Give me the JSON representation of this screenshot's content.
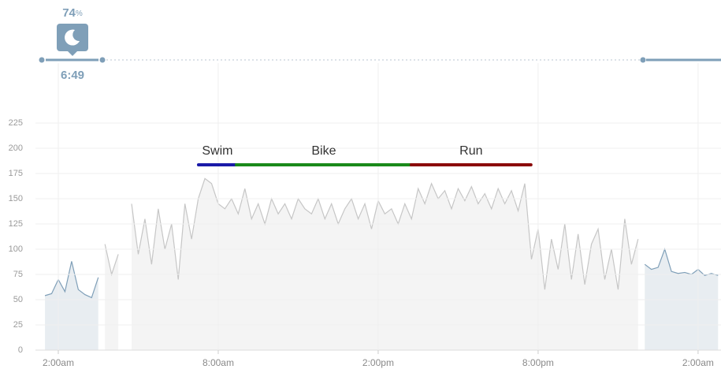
{
  "chart_data": {
    "type": "line",
    "sleep": {
      "score": "74",
      "score_unit": "%",
      "duration": "6:49"
    },
    "xlim": [
      1.38,
      26.86
    ],
    "xticks": [
      {
        "value": 2,
        "label": "2:00am"
      },
      {
        "value": 8,
        "label": "8:00am"
      },
      {
        "value": 14,
        "label": "2:00pm"
      },
      {
        "value": 20,
        "label": "8:00pm"
      },
      {
        "value": 26,
        "label": "2:00am"
      }
    ],
    "ylim": [
      0,
      225
    ],
    "yticks": [
      0,
      25,
      50,
      75,
      100,
      125,
      150,
      175,
      200,
      225
    ],
    "grid": true,
    "activities": [
      {
        "name": "Swim",
        "color": "#1a1aa8",
        "start": 7.26,
        "end": 8.68
      },
      {
        "name": "Bike",
        "color": "#1a8a1a",
        "start": 8.68,
        "end": 15.24
      },
      {
        "name": "Run",
        "color": "#8b0a0a",
        "start": 15.24,
        "end": 19.73
      }
    ],
    "series": [
      {
        "color": "#7f9fb8",
        "fill": "#e8edf1",
        "x": [
          1.5,
          1.75,
          2.0,
          2.25,
          2.5,
          2.75,
          3.0,
          3.25,
          3.5
        ],
        "values": [
          54,
          56,
          70,
          58,
          88,
          60,
          55,
          52,
          72
        ]
      },
      {
        "color": "#c6c6c6",
        "fill": "#f4f4f4",
        "x": [
          3.75,
          4.0,
          4.25,
          4.5,
          4.75,
          5.0,
          5.25,
          5.5,
          5.75,
          6.0,
          6.25,
          6.5,
          6.75,
          7.0,
          7.25,
          7.5,
          7.75,
          8.0,
          8.25,
          8.5,
          8.75,
          9.0,
          9.25,
          9.5,
          9.75,
          10.0,
          10.25,
          10.5,
          10.75,
          11.0,
          11.25,
          11.5,
          11.75,
          12.0,
          12.25,
          12.5,
          12.75,
          13.0,
          13.25,
          13.5,
          13.75,
          14.0,
          14.25,
          14.5,
          14.75,
          15.0,
          15.25,
          15.5,
          15.75,
          16.0,
          16.25,
          16.5,
          16.75,
          17.0,
          17.25,
          17.5,
          17.75,
          18.0,
          18.25,
          18.5,
          18.75,
          19.0,
          19.25,
          19.5,
          19.75,
          20.0,
          20.25,
          20.5,
          20.75,
          21.0,
          21.25,
          21.5,
          21.75,
          22.0,
          22.25,
          22.5,
          22.75,
          23.0,
          23.25,
          23.5,
          23.75
        ],
        "values": [
          105,
          75,
          95,
          null,
          145,
          95,
          130,
          85,
          140,
          100,
          125,
          70,
          145,
          110,
          150,
          170,
          165,
          145,
          140,
          150,
          135,
          160,
          130,
          145,
          125,
          150,
          135,
          145,
          130,
          150,
          140,
          135,
          150,
          130,
          145,
          125,
          140,
          150,
          130,
          145,
          120,
          148,
          135,
          140,
          125,
          145,
          130,
          160,
          145,
          165,
          150,
          158,
          140,
          160,
          148,
          162,
          145,
          155,
          140,
          160,
          145,
          158,
          138,
          165,
          90,
          120,
          60,
          110,
          80,
          125,
          70,
          115,
          65,
          105,
          120,
          70,
          100,
          60,
          130,
          85,
          110
        ]
      },
      {
        "color": "#7f9fb8",
        "fill": "#e8edf1",
        "x": [
          24.0,
          24.25,
          24.5,
          24.75,
          25.0,
          25.25,
          25.5,
          25.75,
          26.0,
          26.25,
          26.5,
          26.75
        ],
        "values": [
          85,
          80,
          82,
          100,
          78,
          76,
          77,
          75,
          80,
          74,
          76,
          74
        ]
      }
    ]
  }
}
